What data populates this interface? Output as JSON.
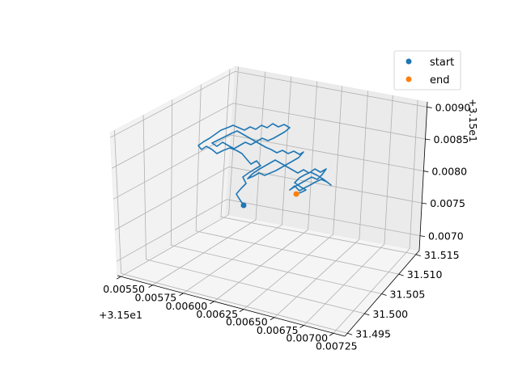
{
  "chart_data": {
    "type": "line3d",
    "title": "",
    "xlabel": "",
    "ylabel": "",
    "zlabel": "",
    "x_offset": "+3.15e1",
    "y_offset": "",
    "z_offset": "+3.15e1",
    "x_ticks": [
      "0.00550",
      "0.00575",
      "0.00600",
      "0.00625",
      "0.00650",
      "0.00675",
      "0.00700",
      "0.00725"
    ],
    "y_ticks": [
      "31.495",
      "31.500",
      "31.505",
      "31.510",
      "31.515"
    ],
    "z_ticks": [
      "0.0070",
      "0.0075",
      "0.0080",
      "0.0085",
      "0.0090"
    ],
    "grid": true,
    "legend_placement": "top-right",
    "series": [
      {
        "name": "",
        "kind": "line",
        "color": "#1f77b4",
        "points_projected": [
          [
            301,
            254
          ],
          [
            295,
            245
          ],
          [
            292,
            240
          ],
          [
            298,
            233
          ],
          [
            304,
            227
          ],
          [
            300,
            219
          ],
          [
            307,
            214
          ],
          [
            315,
            209
          ],
          [
            322,
            205
          ],
          [
            317,
            199
          ],
          [
            310,
            203
          ],
          [
            304,
            196
          ],
          [
            299,
            190
          ],
          [
            292,
            186
          ],
          [
            284,
            183
          ],
          [
            276,
            186
          ],
          [
            268,
            190
          ],
          [
            262,
            185
          ],
          [
            255,
            181
          ],
          [
            249,
            185
          ],
          [
            245,
            180
          ],
          [
            252,
            175
          ],
          [
            259,
            171
          ],
          [
            266,
            166
          ],
          [
            273,
            161
          ],
          [
            281,
            158
          ],
          [
            288,
            155
          ],
          [
            295,
            158
          ],
          [
            302,
            161
          ],
          [
            309,
            157
          ],
          [
            316,
            160
          ],
          [
            323,
            155
          ],
          [
            330,
            158
          ],
          [
            337,
            153
          ],
          [
            344,
            157
          ],
          [
            351,
            154
          ],
          [
            358,
            158
          ],
          [
            352,
            163
          ],
          [
            345,
            167
          ],
          [
            338,
            171
          ],
          [
            331,
            174
          ],
          [
            324,
            171
          ],
          [
            317,
            175
          ],
          [
            310,
            179
          ],
          [
            303,
            176
          ],
          [
            296,
            180
          ],
          [
            289,
            184
          ],
          [
            282,
            180
          ],
          [
            275,
            176
          ],
          [
            268,
            181
          ],
          [
            262,
            177
          ],
          [
            270,
            173
          ],
          [
            278,
            169
          ],
          [
            286,
            165
          ],
          [
            293,
            162
          ],
          [
            300,
            166
          ],
          [
            307,
            170
          ],
          [
            314,
            174
          ],
          [
            321,
            178
          ],
          [
            328,
            182
          ],
          [
            335,
            185
          ],
          [
            342,
            189
          ],
          [
            349,
            186
          ],
          [
            356,
            190
          ],
          [
            363,
            187
          ],
          [
            370,
            191
          ],
          [
            375,
            188
          ],
          [
            369,
            195
          ],
          [
            362,
            199
          ],
          [
            355,
            203
          ],
          [
            348,
            207
          ],
          [
            341,
            211
          ],
          [
            334,
            214
          ],
          [
            327,
            217
          ],
          [
            320,
            214
          ],
          [
            313,
            218
          ],
          [
            306,
            221
          ],
          [
            312,
            215
          ],
          [
            319,
            210
          ],
          [
            326,
            206
          ],
          [
            333,
            202
          ],
          [
            340,
            198
          ],
          [
            347,
            202
          ],
          [
            354,
            206
          ],
          [
            361,
            210
          ],
          [
            368,
            214
          ],
          [
            375,
            210
          ],
          [
            382,
            214
          ],
          [
            389,
            209
          ],
          [
            396,
            213
          ],
          [
            403,
            209
          ],
          [
            398,
            216
          ],
          [
            392,
            222
          ],
          [
            385,
            219
          ],
          [
            378,
            223
          ],
          [
            371,
            227
          ],
          [
            364,
            231
          ],
          [
            358,
            235
          ],
          [
            364,
            230
          ],
          [
            370,
            236
          ],
          [
            377,
            232
          ],
          [
            383,
            229
          ],
          [
            390,
            225
          ],
          [
            397,
            222
          ],
          [
            404,
            225
          ],
          [
            409,
            229
          ],
          [
            400,
            222
          ],
          [
            392,
            217
          ],
          [
            384,
            213
          ],
          [
            377,
            216
          ],
          [
            370,
            220
          ],
          [
            364,
            226
          ],
          [
            371,
            231
          ],
          [
            378,
            235
          ],
          [
            372,
            238
          ],
          [
            366,
            240
          ]
        ]
      },
      {
        "name": "start",
        "kind": "scatter",
        "color": "#1f77b4",
        "points_projected": [
          [
            301,
            254
          ]
        ]
      },
      {
        "name": "end",
        "kind": "scatter",
        "color": "#ff7f0e",
        "points_projected": [
          [
            366,
            240
          ]
        ]
      }
    ]
  }
}
